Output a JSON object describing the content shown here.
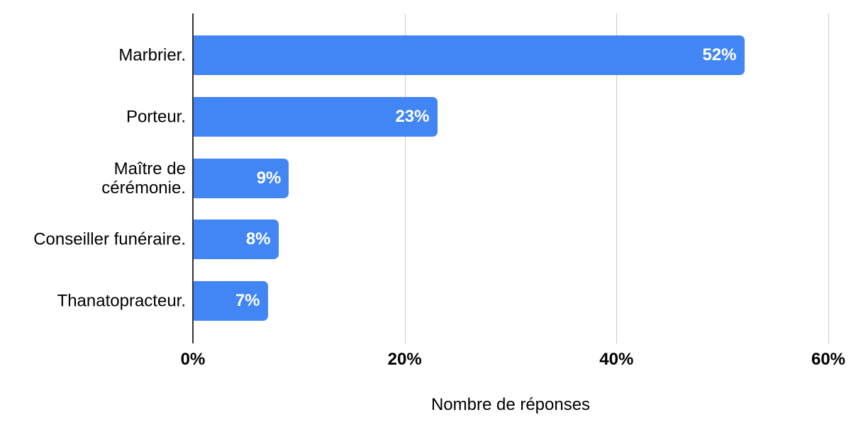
{
  "chart_data": {
    "type": "bar",
    "orientation": "horizontal",
    "title": "",
    "xlabel": "Nombre de réponses",
    "ylabel": "",
    "categories": [
      "Marbrier.",
      "Porteur.",
      "Maître de cérémonie.",
      "Conseiller funéraire.",
      "Thanatopracteur."
    ],
    "values": [
      52,
      23,
      9,
      8,
      7
    ],
    "value_labels": [
      "52%",
      "23%",
      "9%",
      "8%",
      "7%"
    ],
    "xlim": [
      0,
      60
    ],
    "x_tick_values": [
      0,
      20,
      40,
      60
    ],
    "x_tick_labels": [
      "0%",
      "20%",
      "40%",
      "60%"
    ],
    "grid": true,
    "legend": "none",
    "colors": {
      "bar": "#4285f4",
      "bar_label": "#ffffff",
      "axis_line": "#333333",
      "gridline": "#cccccc",
      "text": "#000000",
      "background": "#ffffff"
    }
  }
}
